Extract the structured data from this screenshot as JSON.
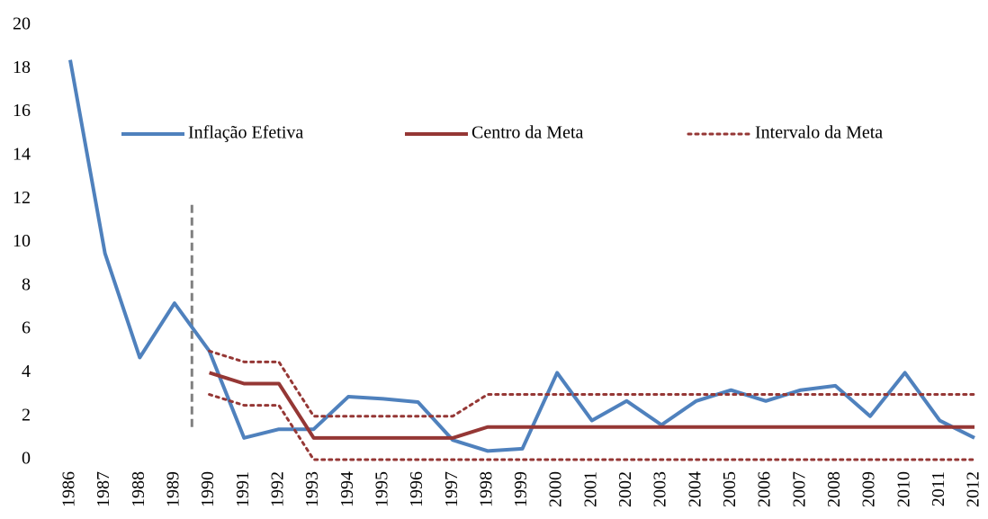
{
  "chart_data": {
    "type": "line",
    "x": [
      1986,
      1987,
      1988,
      1989,
      1990,
      1991,
      1992,
      1993,
      1994,
      1995,
      1996,
      1997,
      1998,
      1999,
      2000,
      2001,
      2002,
      2003,
      2004,
      2005,
      2006,
      2007,
      2008,
      2009,
      2010,
      2011,
      2012
    ],
    "xlim": [
      1986,
      2012
    ],
    "ylim": [
      0,
      20
    ],
    "yticks": [
      0,
      2,
      4,
      6,
      8,
      10,
      12,
      14,
      16,
      18,
      20
    ],
    "grid": false,
    "legend": "top",
    "series": [
      {
        "name": "Inflação Efetiva",
        "color": "#4f81bd",
        "style": "solid",
        "values": [
          18.4,
          9.5,
          4.7,
          7.2,
          5.0,
          1.0,
          1.4,
          1.4,
          2.9,
          2.8,
          2.65,
          0.9,
          0.4,
          0.5,
          4.0,
          1.8,
          2.7,
          1.6,
          2.7,
          3.2,
          2.7,
          3.2,
          3.4,
          2.0,
          4.0,
          1.8,
          1.0
        ]
      },
      {
        "name": "Centro da Meta",
        "color": "#953735",
        "style": "solid",
        "values": [
          null,
          null,
          null,
          null,
          4,
          3.5,
          3.5,
          1,
          1,
          1,
          1,
          1,
          1.5,
          1.5,
          1.5,
          1.5,
          1.5,
          1.5,
          1.5,
          1.5,
          1.5,
          1.5,
          1.5,
          1.5,
          1.5,
          1.5,
          1.5
        ]
      },
      {
        "name": "Intervalo da Meta",
        "color": "#953735",
        "style": "dotted",
        "upper": [
          null,
          null,
          null,
          null,
          5,
          4.5,
          4.5,
          2,
          2,
          2,
          2,
          2,
          3,
          3,
          3,
          3,
          3,
          3,
          3,
          3,
          3,
          3,
          3,
          3,
          3,
          3,
          3
        ],
        "lower": [
          null,
          null,
          null,
          null,
          3,
          2.5,
          2.5,
          0,
          0,
          0,
          0,
          0,
          0,
          0,
          0,
          0,
          0,
          0,
          0,
          0,
          0,
          0,
          0,
          0,
          0,
          0,
          0
        ]
      }
    ],
    "vline": {
      "x": 1989.5,
      "y": [
        1.5,
        11.8
      ],
      "color": "#808080"
    }
  }
}
